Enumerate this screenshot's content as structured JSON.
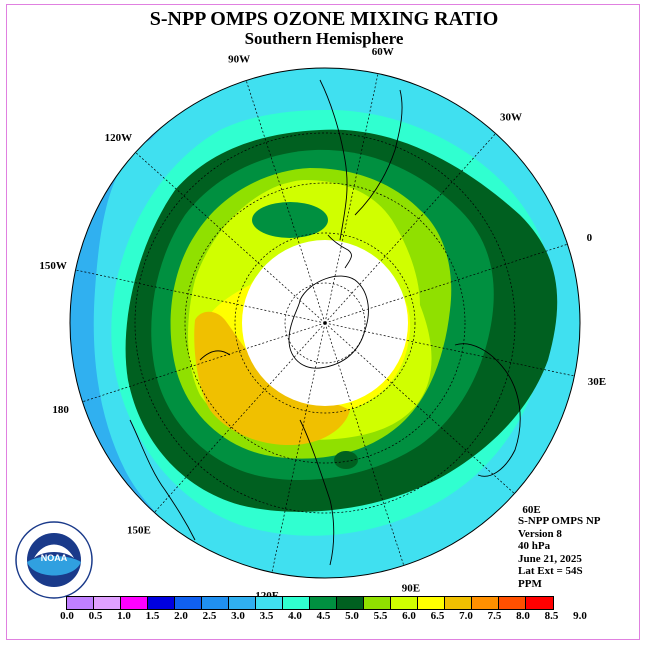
{
  "title": "S-NPP OMPS OZONE MIXING RATIO",
  "subtitle": "Southern Hemisphere",
  "info": {
    "line1": "S-NPP OMPS NP",
    "line2": "Version 8",
    "line3": "40 hPa",
    "line4": "June 21, 2025",
    "line5": "Lat Ext = 54S",
    "line6": "PPM"
  },
  "logo": {
    "text": "NOAA",
    "ring_text": "NATIONAL OCEANIC AND ATMOSPHERIC ADMINISTRATION · U.S. DEPARTMENT OF COMMERCE"
  },
  "longitude_labels": [
    "90W",
    "60W",
    "30W",
    "0",
    "30E",
    "60E",
    "90E",
    "120E",
    "150E",
    "180",
    "150W",
    "120W"
  ],
  "colorbar": {
    "ticks": [
      "0.0",
      "0.5",
      "1.0",
      "1.5",
      "2.0",
      "2.5",
      "3.0",
      "3.5",
      "4.0",
      "4.5",
      "5.0",
      "5.5",
      "6.0",
      "6.5",
      "7.0",
      "7.5",
      "8.0",
      "8.5",
      "9.0"
    ],
    "colors": [
      "#c080ff",
      "#e0a0ff",
      "#ff00ff",
      "#0000e0",
      "#1060f0",
      "#2090f0",
      "#30b0f0",
      "#40e0f0",
      "#30ffd0",
      "#009040",
      "#006020",
      "#90e000",
      "#d0ff00",
      "#ffff00",
      "#f0c000",
      "#ff9000",
      "#ff5000",
      "#ff0000",
      "#905030"
    ]
  },
  "colors": {
    "cyan_background": "#40e0f0",
    "light_blue": "#30b0f0",
    "green_dark": "#006020",
    "green": "#009040",
    "lime": "#90e000",
    "yellow_green": "#d0ff00",
    "yellow": "#ffff00",
    "orange": "#f0c000",
    "polar_night": "#ffffff"
  }
}
